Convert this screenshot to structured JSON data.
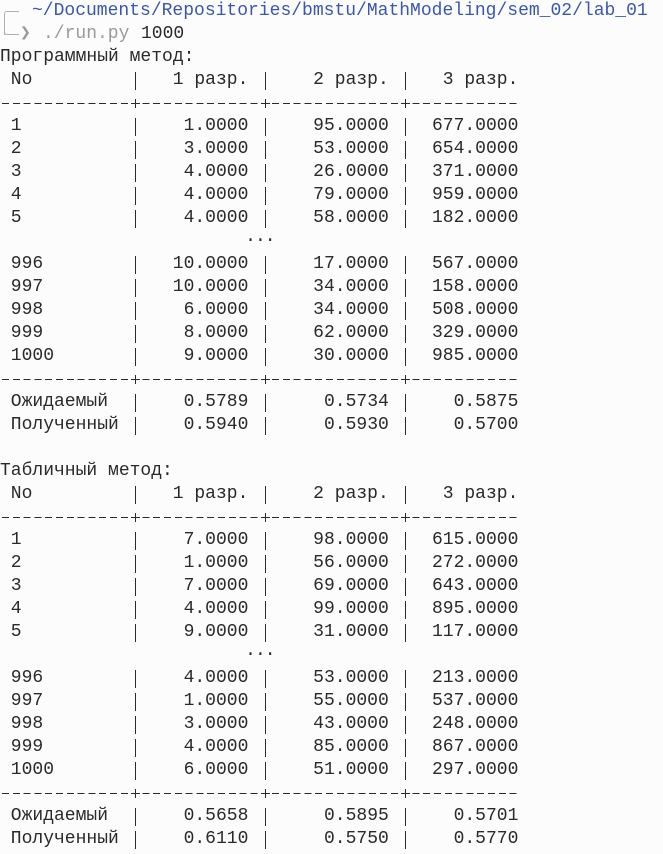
{
  "prompt": {
    "path": "~/Documents/Repositories/bmstu/MathModeling/sem_02/lab_01",
    "symbol": "❯",
    "command": "./run.py",
    "argument": "1000"
  },
  "tables": [
    {
      "title": "Программный метод:",
      "headers": [
        "No",
        "1 разр.",
        "2 разр.",
        "3 разр."
      ],
      "rows_head": [
        [
          "1",
          "1.0000",
          "95.0000",
          "677.0000"
        ],
        [
          "2",
          "3.0000",
          "53.0000",
          "654.0000"
        ],
        [
          "3",
          "4.0000",
          "26.0000",
          "371.0000"
        ],
        [
          "4",
          "4.0000",
          "79.0000",
          "959.0000"
        ],
        [
          "5",
          "4.0000",
          "58.0000",
          "182.0000"
        ]
      ],
      "ellipsis": "...",
      "rows_tail": [
        [
          "996",
          "10.0000",
          "17.0000",
          "567.0000"
        ],
        [
          "997",
          "10.0000",
          "34.0000",
          "158.0000"
        ],
        [
          "998",
          "6.0000",
          "34.0000",
          "508.0000"
        ],
        [
          "999",
          "8.0000",
          "62.0000",
          "329.0000"
        ],
        [
          "1000",
          "9.0000",
          "30.0000",
          "985.0000"
        ]
      ],
      "summary": [
        [
          "Ожидаемый",
          "0.5789",
          "0.5734",
          "0.5875"
        ],
        [
          "Полученный",
          "0.5940",
          "0.5930",
          "0.5700"
        ]
      ]
    },
    {
      "title": "Табличный метод:",
      "headers": [
        "No",
        "1 разр.",
        "2 разр.",
        "3 разр."
      ],
      "rows_head": [
        [
          "1",
          "7.0000",
          "98.0000",
          "615.0000"
        ],
        [
          "2",
          "1.0000",
          "56.0000",
          "272.0000"
        ],
        [
          "3",
          "7.0000",
          "69.0000",
          "643.0000"
        ],
        [
          "4",
          "4.0000",
          "99.0000",
          "895.0000"
        ],
        [
          "5",
          "9.0000",
          "31.0000",
          "117.0000"
        ]
      ],
      "ellipsis": "...",
      "rows_tail": [
        [
          "996",
          "4.0000",
          "53.0000",
          "213.0000"
        ],
        [
          "997",
          "1.0000",
          "55.0000",
          "537.0000"
        ],
        [
          "998",
          "3.0000",
          "43.0000",
          "248.0000"
        ],
        [
          "999",
          "4.0000",
          "85.0000",
          "867.0000"
        ],
        [
          "1000",
          "6.0000",
          "51.0000",
          "297.0000"
        ]
      ],
      "summary": [
        [
          "Ожидаемый",
          "0.5658",
          "0.5895",
          "0.5701"
        ],
        [
          "Полученный",
          "0.6110",
          "0.5750",
          "0.5770"
        ]
      ]
    }
  ]
}
